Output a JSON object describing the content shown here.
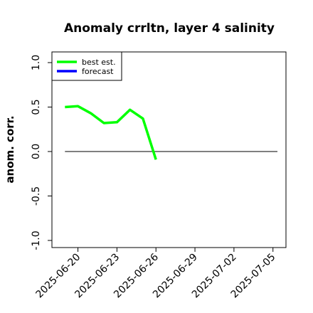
{
  "chart_data": {
    "type": "line",
    "title": "Anomaly crrltn, layer 4 salinity",
    "xlabel": "",
    "ylabel": "anom. corr.",
    "xlim": [
      "2025-06-18",
      "2025-07-06"
    ],
    "ylim": [
      -1.08,
      1.12
    ],
    "yticks": [
      -1.0,
      -0.5,
      0.0,
      0.5,
      1.0
    ],
    "ytick_labels": [
      "-1.0",
      "-0.5",
      "0.0",
      "0.5",
      "1.0"
    ],
    "xticks": [
      "2025-06-20",
      "2025-06-23",
      "2025-06-26",
      "2025-06-29",
      "2025-07-02",
      "2025-07-05"
    ],
    "xtick_labels": [
      "2025-06-20",
      "2025-06-23",
      "2025-06-26",
      "2025-06-29",
      "2025-07-02",
      "2025-07-05"
    ],
    "highlighted_xtick": "2025-06-26",
    "highlight_color": "#228B22",
    "reference_line": {
      "y": 0.0,
      "from": "2025-06-19",
      "to": "2025-07-06",
      "color": "#000000"
    },
    "grid": false,
    "legend_position": "top-left",
    "series": [
      {
        "name": "best est.",
        "color": "#00ff00",
        "x": [
          "2025-06-19",
          "2025-06-20",
          "2025-06-21",
          "2025-06-22",
          "2025-06-23",
          "2025-06-24",
          "2025-06-25",
          "2025-06-26"
        ],
        "y": [
          0.5,
          0.51,
          0.43,
          0.32,
          0.33,
          0.47,
          0.37,
          -0.09
        ]
      },
      {
        "name": "forecast",
        "color": "#0000ff",
        "x": [],
        "y": []
      }
    ]
  }
}
